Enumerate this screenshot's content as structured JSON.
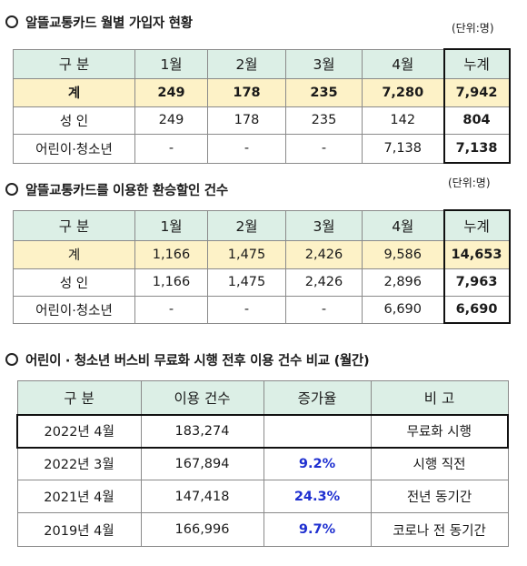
{
  "sections": [
    {
      "title": "알뜰교통카드 월별 가입자 현황",
      "unit": "(단위:명)",
      "headers": [
        "구  분",
        "1월",
        "2월",
        "3월",
        "4월",
        "누계"
      ],
      "rows": [
        [
          "계",
          "249",
          "178",
          "235",
          "7,280",
          "7,942"
        ],
        [
          "성  인",
          "249",
          "178",
          "235",
          "142",
          "804"
        ],
        [
          "어린이·청소년",
          "-",
          "-",
          "-",
          "7,138",
          "7,138"
        ]
      ]
    },
    {
      "title": "알뜰교통카드를 이용한 환승할인 건수",
      "unit": "(단위:명)",
      "headers": [
        "구  분",
        "1월",
        "2월",
        "3월",
        "4월",
        "누계"
      ],
      "rows": [
        [
          "계",
          "1,166",
          "1,475",
          "2,426",
          "9,586",
          "14,653"
        ],
        [
          "성  인",
          "1,166",
          "1,475",
          "2,426",
          "2,896",
          "7,963"
        ],
        [
          "어린이·청소년",
          "-",
          "-",
          "-",
          "6,690",
          "6,690"
        ]
      ]
    },
    {
      "title": "어린이 · 청소년 버스비 무료화 시행 전후 이용 건수 비교 (월간)",
      "headers": [
        "구  분",
        "이용 건수",
        "증가율",
        "비  고"
      ],
      "rows": [
        [
          "2022년 4월",
          "183,274",
          "",
          "무료화 시행"
        ],
        [
          "2022년 3월",
          "167,894",
          "9.2%",
          "시행 직전"
        ],
        [
          "2021년 4월",
          "147,418",
          "24.3%",
          "전년 동기간"
        ],
        [
          "2019년 4월",
          "166,996",
          "9.7%",
          "코로나 전 동기간"
        ]
      ]
    }
  ],
  "colors": {
    "header_bg": "#dcefe6",
    "total_row_bg": "#fdf2c7",
    "rate_text": "#1e2fd0"
  }
}
